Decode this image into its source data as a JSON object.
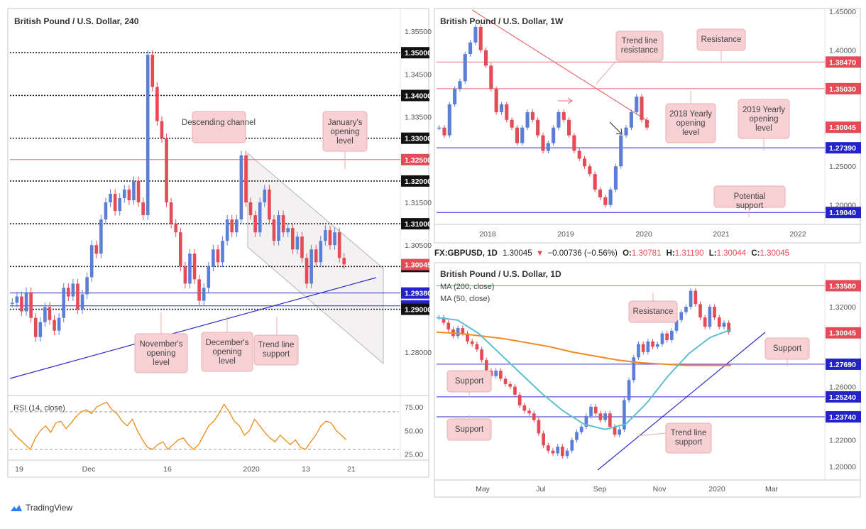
{
  "chart_data": [
    {
      "type": "line",
      "title": "British Pound / U.S. Dollar, 240",
      "ylim": [
        1.27,
        1.36
      ],
      "y_ticks": [
        "1.35500",
        "1.35000",
        "1.34500",
        "1.34000",
        "1.33500",
        "1.33000",
        "1.32500",
        "1.32000",
        "1.31500",
        "1.31000",
        "1.30500",
        "1.30045",
        "1.30000",
        "1.29380",
        "1.29080",
        "1.29000",
        "1.28000"
      ],
      "x_tick_labels": [
        "19",
        "Dec",
        "16",
        "2020",
        "13",
        "21"
      ],
      "series": [
        {
          "values": [
            1.2915,
            1.293,
            1.2895,
            1.294,
            1.288,
            1.2835,
            1.287,
            1.2905,
            1.2875,
            1.285,
            1.288,
            1.295,
            1.293,
            1.296,
            1.29,
            1.2935,
            1.2975,
            1.305,
            1.303,
            1.311,
            1.315,
            1.317,
            1.313,
            1.316,
            1.318,
            1.3155,
            1.32,
            1.315,
            1.312,
            1.3495,
            1.342,
            1.334,
            1.33,
            1.315,
            1.31,
            1.308,
            1.3,
            1.296,
            1.303,
            1.297,
            1.292,
            1.295,
            1.3,
            1.304,
            1.301,
            1.306,
            1.311,
            1.308,
            1.311,
            1.326,
            1.315,
            1.312,
            1.308,
            1.315,
            1.318,
            1.311,
            1.306,
            1.312,
            1.308,
            1.309,
            1.304,
            1.307,
            1.302,
            1.296,
            1.304,
            1.301,
            1.306,
            1.3085,
            1.305,
            1.308,
            1.302,
            1.3005
          ]
        }
      ],
      "levels": [
        {
          "value": "1.35000",
          "style": "dotted"
        },
        {
          "value": "1.34000",
          "style": "dotted"
        },
        {
          "value": "1.33000",
          "style": "dotted"
        },
        {
          "value": "1.32500",
          "style": "red"
        },
        {
          "value": "1.32000",
          "style": "dotted"
        },
        {
          "value": "1.31000",
          "style": "dotted"
        },
        {
          "value": "1.30000",
          "style": "dotted"
        },
        {
          "value": "1.29380",
          "style": "blue"
        },
        {
          "value": "1.29080",
          "style": "blue"
        },
        {
          "value": "1.29000",
          "style": "dotted"
        }
      ],
      "current_price": "1.30045",
      "annotations": [
        "Descending channel",
        "January's opening level",
        "November's opening level",
        "December's opening level",
        "Trend line support"
      ]
    },
    {
      "type": "line",
      "title": "RSI (14, close)",
      "ylim": [
        20,
        85
      ],
      "y_ticks": [
        "75.00",
        "50.00",
        "25.00"
      ],
      "values": [
        52,
        45,
        40,
        35,
        30,
        42,
        50,
        55,
        48,
        58,
        60,
        52,
        58,
        65,
        70,
        72,
        68,
        75,
        78,
        80,
        72,
        68,
        60,
        55,
        62,
        50,
        40,
        32,
        30,
        35,
        38,
        30,
        35,
        40,
        42,
        35,
        30,
        35,
        45,
        55,
        60,
        68,
        78,
        70,
        60,
        55,
        45,
        50,
        62,
        55,
        48,
        42,
        38,
        45,
        40,
        35,
        40,
        32,
        30,
        38,
        45,
        55,
        60,
        58,
        50,
        45,
        40
      ]
    },
    {
      "type": "line",
      "title": "British Pound / U.S. Dollar, 1W",
      "ylim": [
        1.175,
        1.452
      ],
      "y_ticks": [
        "1.45000",
        "1.40000",
        "1.38470",
        "1.35030",
        "1.30045",
        "1.27390",
        "1.25000",
        "1.20000",
        "1.19040"
      ],
      "x_tick_labels": [
        "2018",
        "2019",
        "2020",
        "2021",
        "2022"
      ],
      "values": [
        1.3,
        1.29,
        1.33,
        1.35,
        1.36,
        1.395,
        1.41,
        1.43,
        1.4,
        1.38,
        1.35,
        1.32,
        1.33,
        1.31,
        1.3,
        1.28,
        1.3,
        1.32,
        1.31,
        1.29,
        1.27,
        1.28,
        1.3,
        1.32,
        1.31,
        1.29,
        1.27,
        1.26,
        1.25,
        1.24,
        1.22,
        1.21,
        1.2,
        1.22,
        1.25,
        1.29,
        1.3,
        1.32,
        1.34,
        1.31,
        1.3
      ],
      "levels": [
        {
          "value": "1.38470",
          "style": "red"
        },
        {
          "value": "1.35030",
          "style": "red"
        },
        {
          "value": "1.27390",
          "style": "blue"
        },
        {
          "value": "1.19040",
          "style": "blue"
        }
      ],
      "current_price": "1.30045",
      "annotations": [
        "Trend line resistance",
        "Resistance",
        "2018 Yearly opening level",
        "2019 Yearly opening level",
        "Potential support"
      ]
    },
    {
      "type": "line",
      "title": "British Pound / U.S. Dollar, 1D",
      "ylim": [
        1.19,
        1.352
      ],
      "y_ticks": [
        "1.33580",
        "1.32000",
        "1.30045",
        "1.27690",
        "1.26000",
        "1.25240",
        "1.23740",
        "1.22000",
        "1.20000"
      ],
      "x_tick_labels": [
        "May",
        "Jul",
        "Sep",
        "Nov",
        "2020",
        "Mar"
      ],
      "values": [
        1.312,
        1.308,
        1.303,
        1.298,
        1.304,
        1.3,
        1.294,
        1.292,
        1.288,
        1.28,
        1.272,
        1.268,
        1.272,
        1.266,
        1.262,
        1.26,
        1.254,
        1.246,
        1.242,
        1.24,
        1.235,
        1.225,
        1.216,
        1.212,
        1.21,
        1.215,
        1.208,
        1.212,
        1.22,
        1.226,
        1.23,
        1.238,
        1.245,
        1.24,
        1.235,
        1.24,
        1.23,
        1.224,
        1.228,
        1.25,
        1.265,
        1.282,
        1.292,
        1.286,
        1.294,
        1.29,
        1.292,
        1.3,
        1.295,
        1.302,
        1.31,
        1.316,
        1.32,
        1.332,
        1.322,
        1.312,
        1.305,
        1.32,
        1.312,
        1.305,
        1.308,
        1.301
      ],
      "series_names": [
        "MA (200, close)",
        "MA (50, close)"
      ],
      "ma200": [
        1.301,
        1.3,
        1.298,
        1.296,
        1.293,
        1.29,
        1.286,
        1.283,
        1.28,
        1.278,
        1.277,
        1.276,
        1.276,
        1.276
      ],
      "ma50": [
        1.312,
        1.31,
        1.3,
        1.285,
        1.27,
        1.255,
        1.242,
        1.232,
        1.228,
        1.232,
        1.248,
        1.268,
        1.285,
        1.297,
        1.303
      ],
      "header": {
        "symbol": "FX:GBPUSD, 1D",
        "price": "1.30045",
        "arrow": "▼",
        "change": "−0.00736 (−0.56%)",
        "open_label": "O:",
        "open": "1.30781",
        "high_label": "H:",
        "high": "1.31190",
        "low_label": "L:",
        "low": "1.30044",
        "close_label": "C:",
        "close": "1.30045"
      },
      "levels": [
        {
          "value": "1.33580",
          "style": "red"
        },
        {
          "value": "1.27690",
          "style": "blue"
        },
        {
          "value": "1.25240",
          "style": "blue"
        },
        {
          "value": "1.23740",
          "style": "blue"
        }
      ],
      "current_price": "1.30045",
      "annotations": [
        "Resistance",
        "Support",
        "Support",
        "Support",
        "Trend line support"
      ]
    }
  ],
  "branding": {
    "name": "TradingView"
  },
  "colors": {
    "up": "#5b7fd6",
    "down": "#e34b57",
    "resistance": "#e86a73",
    "support": "#2c2ccb",
    "ma200": "#f08a24",
    "ma50": "#5cc0d0",
    "rsi": "#ef8a1c",
    "callout": "#f6d0d3"
  }
}
